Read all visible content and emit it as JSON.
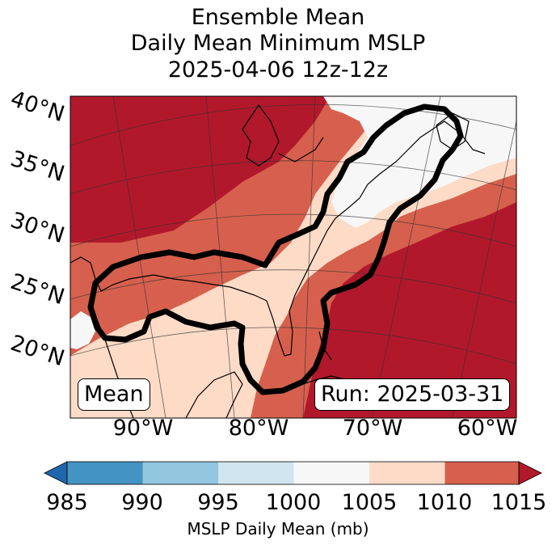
{
  "title": {
    "line1": "Ensemble Mean",
    "line2": "Daily Mean Minimum MSLP",
    "line3": "2025-04-06 12z-12z"
  },
  "map": {
    "lat_labels": [
      "40°N",
      "35°N",
      "30°N",
      "25°N",
      "20°N"
    ],
    "lon_labels": [
      "90°W",
      "80°W",
      "70°W",
      "60°W"
    ],
    "mean_box": "Mean",
    "run_box": "Run: 2025-03-31",
    "field_colors": {
      "c1015": "#b2182b",
      "c1010": "#d6604d",
      "c1005": "#fddbc7",
      "c1000": "#f7f7f7",
      "land_line": "#000000",
      "contour": "#000000"
    }
  },
  "colorbar": {
    "label": "MSLP Daily Mean (mb)",
    "ticks": [
      "985",
      "990",
      "995",
      "1000",
      "1005",
      "1010",
      "1015"
    ],
    "bins": [
      {
        "low": 985,
        "high": 990,
        "color": "#4393c3"
      },
      {
        "low": 990,
        "high": 995,
        "color": "#92c5de"
      },
      {
        "low": 995,
        "high": 1000,
        "color": "#d1e5f0"
      },
      {
        "low": 1000,
        "high": 1005,
        "color": "#f7f7f7"
      },
      {
        "low": 1005,
        "high": 1010,
        "color": "#fddbc7"
      },
      {
        "low": 1010,
        "high": 1015,
        "color": "#d6604d"
      }
    ],
    "under_color": "#2166ac",
    "over_color": "#b2182b"
  }
}
